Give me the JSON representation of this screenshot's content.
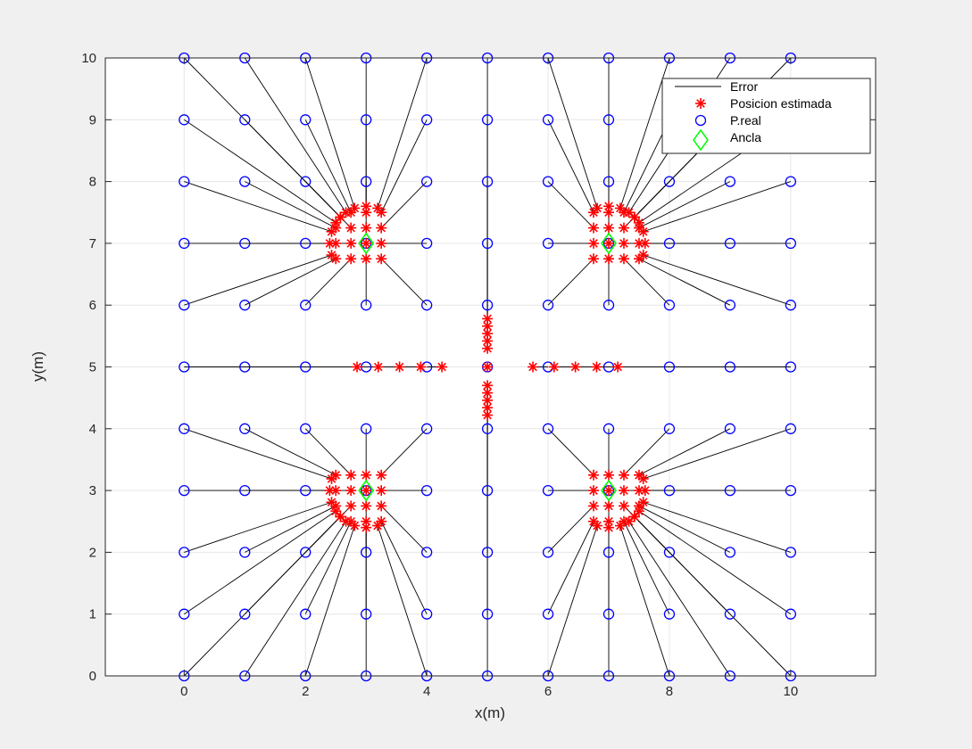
{
  "chart_data": {
    "type": "scatter",
    "title": "",
    "xlabel": "x(m)",
    "ylabel": "y(m)",
    "xlim": [
      -1.3,
      11.4
    ],
    "ylim": [
      0,
      10
    ],
    "xticks": [
      0,
      2,
      4,
      6,
      8,
      10
    ],
    "yticks": [
      0,
      1,
      2,
      3,
      4,
      5,
      6,
      7,
      8,
      9,
      10
    ],
    "grid": true,
    "legend_position": "top-right",
    "legend": [
      {
        "label": "Error",
        "marker": "line",
        "color": "#000000"
      },
      {
        "label": "Posicion estimada",
        "marker": "asterisk",
        "color": "#ff0000"
      },
      {
        "label": "P.real",
        "marker": "circle",
        "color": "#0000ff"
      },
      {
        "label": "Ancla",
        "marker": "diamond",
        "color": "#00ff00"
      }
    ],
    "anchors": [
      [
        3,
        3
      ],
      [
        3,
        7
      ],
      [
        7,
        3
      ],
      [
        7,
        7
      ]
    ],
    "grid_points": {
      "x_from": 0,
      "x_to": 10,
      "y_from": 0,
      "y_to": 10,
      "step": 1
    },
    "estimate_rule": {
      "description": "estimated position of each real point",
      "center": [
        5,
        5
      ],
      "quadrant_anchors": [
        [
          3,
          3
        ],
        [
          3,
          7
        ],
        [
          7,
          3
        ],
        [
          7,
          7
        ]
      ]
    },
    "colors": {
      "real": "#0000ff",
      "estimated": "#ff0000",
      "anchor": "#00ff00",
      "error": "#000000",
      "grid": "#e6e6e6",
      "axes_bg": "#ffffff",
      "figure_bg": "#f0f0f0"
    }
  }
}
